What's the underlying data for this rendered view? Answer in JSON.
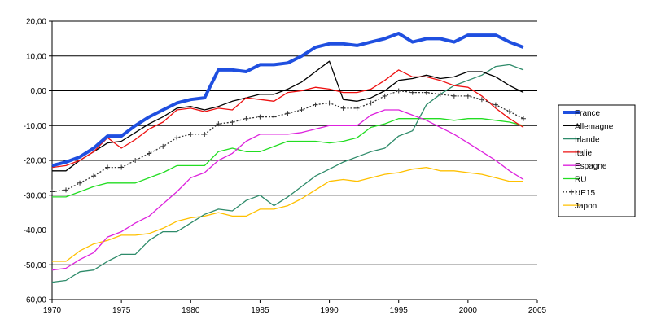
{
  "chart_data": {
    "type": "line",
    "title": "",
    "xlabel": "",
    "ylabel": "",
    "xlim": [
      1970,
      2005
    ],
    "ylim": [
      -60,
      20
    ],
    "x_ticks": [
      "1970",
      "1975",
      "1980",
      "1985",
      "1990",
      "1995",
      "2000",
      "2005"
    ],
    "y_ticks": [
      "20,00",
      "10,00",
      "0,00",
      "-10,00",
      "-20,00",
      "-30,00",
      "-40,00",
      "-50,00",
      "-60,00"
    ],
    "grid": "horizontal",
    "legend_position": "right",
    "x": [
      1970,
      1971,
      1972,
      1973,
      1974,
      1975,
      1976,
      1977,
      1978,
      1979,
      1980,
      1981,
      1982,
      1983,
      1984,
      1985,
      1986,
      1987,
      1988,
      1989,
      1990,
      1991,
      1992,
      1993,
      1994,
      1995,
      1996,
      1997,
      1998,
      1999,
      2000,
      2001,
      2002,
      2003,
      2004
    ],
    "series": [
      {
        "name": "France",
        "color": "#1f4fe0",
        "width": 4,
        "dashed": false,
        "values": [
          -21.5,
          -20.5,
          -19,
          -16.5,
          -13,
          -13,
          -10,
          -7.5,
          -5.5,
          -3.5,
          -2.5,
          -2,
          6,
          6,
          5.5,
          7.5,
          7.5,
          8,
          10,
          12.5,
          13.5,
          13.5,
          13,
          14,
          15,
          16.5,
          14,
          15,
          15,
          14,
          16,
          16,
          16,
          14,
          12.5
        ]
      },
      {
        "name": "Allemagne",
        "color": "#000000",
        "width": 1.3,
        "dashed": false,
        "values": [
          -23,
          -23,
          -20,
          -17.5,
          -15,
          -14.5,
          -12,
          -9.5,
          -7.5,
          -5,
          -4.5,
          -5.5,
          -4.5,
          -3,
          -2,
          -1,
          -1,
          0.5,
          2.5,
          5.5,
          8.5,
          -2.5,
          -3,
          -2,
          0,
          3,
          3.5,
          4.5,
          3.5,
          4,
          5.5,
          5.5,
          4,
          1.5,
          -0.5
        ]
      },
      {
        "name": "Irlande",
        "color": "#2e8b6a",
        "width": 1.3,
        "dashed": false,
        "values": [
          -55,
          -54.5,
          -52,
          -51.5,
          -49,
          -47,
          -47,
          -43,
          -40.5,
          -40.5,
          -38,
          -35.5,
          -34,
          -34.5,
          -31.5,
          -30,
          -33,
          -30.5,
          -27.5,
          -24.5,
          -22.5,
          -20.5,
          -19,
          -17.5,
          -16.5,
          -13,
          -11.5,
          -4,
          -1,
          1.5,
          3,
          4.5,
          7,
          7.5,
          6
        ]
      },
      {
        "name": "Italie",
        "color": "#ee1111",
        "width": 1.3,
        "dashed": false,
        "values": [
          -22,
          -21.5,
          -20,
          -17.5,
          -13.5,
          -16.5,
          -14,
          -11,
          -9,
          -5.5,
          -5,
          -6,
          -5,
          -5.5,
          -2,
          -2.5,
          -3,
          -0.5,
          0,
          1,
          0.5,
          -0.5,
          -0.5,
          0.5,
          3,
          6,
          4,
          4,
          3,
          1.5,
          1,
          -1.5,
          -5,
          -8,
          -10.5
        ]
      },
      {
        "name": "Espagne",
        "color": "#dd22dd",
        "width": 1.3,
        "dashed": false,
        "values": [
          -51.5,
          -51,
          -48.5,
          -46.5,
          -42,
          -40.5,
          -38,
          -36,
          -32.5,
          -29,
          -25,
          -23.5,
          -20,
          -18,
          -14.5,
          -12.5,
          -12.5,
          -12.5,
          -12,
          -11,
          -10,
          -10,
          -10,
          -7,
          -5.5,
          -5.5,
          -7,
          -8.5,
          -10.5,
          -12.5,
          -15,
          -17.5,
          -20,
          -23,
          -25.5
        ]
      },
      {
        "name": "RU",
        "color": "#22dd22",
        "width": 1.3,
        "dashed": false,
        "values": [
          -30.5,
          -30.5,
          -29,
          -27.5,
          -26.5,
          -26.5,
          -26.5,
          -25,
          -23.5,
          -21.5,
          -21.5,
          -21.5,
          -17.5,
          -16.5,
          -17.5,
          -17.5,
          -16,
          -14.5,
          -14.5,
          -14.5,
          -15,
          -14.5,
          -13.5,
          -10.5,
          -9.5,
          -8,
          -8,
          -8,
          -8,
          -8.5,
          -8,
          -8,
          -8.5,
          -9,
          -10
        ]
      },
      {
        "name": "UE15",
        "color": "#333333",
        "width": 1.3,
        "dashed": true,
        "values": [
          -29,
          -28.5,
          -26.5,
          -24.5,
          -22,
          -22,
          -20,
          -18,
          -16,
          -13.5,
          -12.5,
          -12.5,
          -9.5,
          -9,
          -8,
          -7.5,
          -7.5,
          -6.5,
          -5.5,
          -4,
          -3.5,
          -5,
          -5,
          -3.5,
          -1.5,
          0,
          -0.5,
          -0.5,
          -1,
          -1.5,
          -1.5,
          -2.5,
          -4,
          -6,
          -8
        ]
      },
      {
        "name": "Japon",
        "color": "#ffc000",
        "width": 1.3,
        "dashed": false,
        "values": [
          -49,
          -49,
          -46,
          -44,
          -43,
          -41.5,
          -41.5,
          -41,
          -39.5,
          -37.5,
          -36.5,
          -36,
          -35,
          -36,
          -36,
          -34,
          -34,
          -33,
          -31,
          -28.5,
          -26,
          -25.5,
          -26,
          -25,
          -24,
          -23.5,
          -22.5,
          -22,
          -23,
          -23,
          -23.5,
          -24,
          -25,
          -26,
          -26
        ]
      }
    ]
  }
}
